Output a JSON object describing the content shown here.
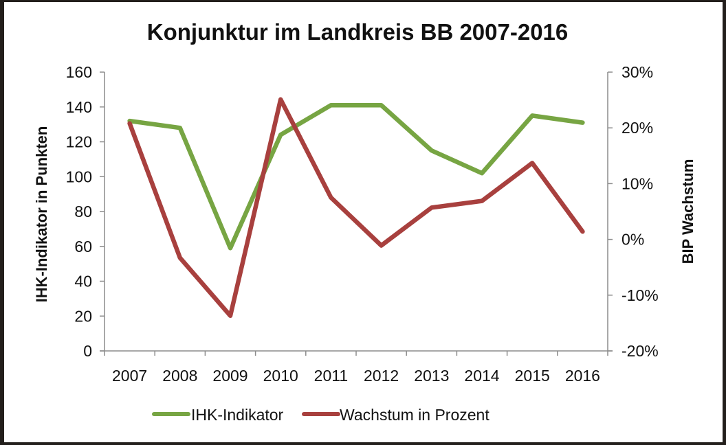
{
  "chart_data": {
    "type": "line",
    "title": "Konjunktur im Landkreis BB 2007-2016",
    "categories": [
      "2007",
      "2008",
      "2009",
      "2010",
      "2011",
      "2012",
      "2013",
      "2014",
      "2015",
      "2016"
    ],
    "series": [
      {
        "name": "IHK-Indikator",
        "axis": "left",
        "color": "#77a543",
        "values": [
          132,
          128,
          59,
          124,
          141,
          141,
          115,
          102,
          135,
          131
        ]
      },
      {
        "name": "Wachstum in Prozent",
        "axis": "right",
        "color": "#a8403e",
        "values": [
          20.8,
          -3.3,
          -13.7,
          25.1,
          7.5,
          -1.1,
          5.7,
          6.9,
          13.7,
          1.4
        ]
      }
    ],
    "xlabel": "",
    "ylabel": "IHK-Indikator in Punkten",
    "ylabel_right": "BIP Wachstum",
    "ylim": [
      0,
      160
    ],
    "ylim_right": [
      -20,
      30
    ],
    "yticks": [
      "0",
      "20",
      "40",
      "60",
      "80",
      "100",
      "120",
      "140",
      "160"
    ],
    "yticks_right": [
      "-20%",
      "-10%",
      "0%",
      "10%",
      "20%",
      "30%"
    ],
    "grid": false,
    "legend_position": "bottom"
  },
  "legend": {
    "items": [
      {
        "label": "IHK-Indikator",
        "color": "#77a543"
      },
      {
        "label": "Wachstum in Prozent",
        "color": "#a8403e"
      }
    ]
  }
}
